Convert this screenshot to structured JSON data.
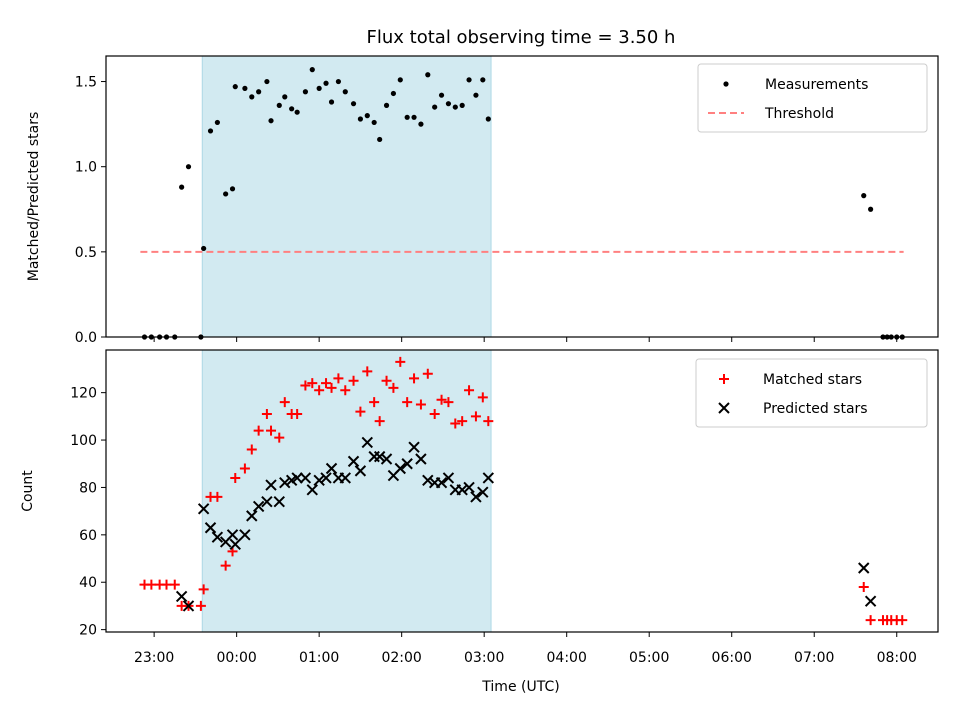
{
  "figure": {
    "title": "Flux total observing time = 3.50 h",
    "xlabel": "Time (UTC)",
    "x_tick_labels": [
      "23:00",
      "00:00",
      "01:00",
      "02:00",
      "03:00",
      "04:00",
      "05:00",
      "06:00",
      "07:00",
      "08:00"
    ],
    "observing_window": {
      "start": "23:35",
      "end": "03:05",
      "color": "#add8e6"
    }
  },
  "chart_data": [
    {
      "type": "scatter",
      "ylabel": "Matched/Predicted stars",
      "xlim": [
        "22:25",
        "08:30"
      ],
      "ylim": [
        0,
        1.65
      ],
      "y_ticks": [
        0.0,
        0.5,
        1.0,
        1.5
      ],
      "y_tick_labels": [
        "0.0",
        "0.5",
        "1.0",
        "1.5"
      ],
      "legend_position": "top-right",
      "series": [
        {
          "name": "Measurements",
          "color": "#000000",
          "marker": "dot",
          "points": [
            [
              "22:53",
              0
            ],
            [
              "22:58",
              0
            ],
            [
              "23:04",
              0
            ],
            [
              "23:09",
              0
            ],
            [
              "23:15",
              0
            ],
            [
              "23:20",
              0.88
            ],
            [
              "23:25",
              1.0
            ],
            [
              "23:34",
              0
            ],
            [
              "23:36",
              0.52
            ],
            [
              "23:41",
              1.21
            ],
            [
              "23:46",
              1.26
            ],
            [
              "23:52",
              0.84
            ],
            [
              "23:57",
              0.87
            ],
            [
              "23:59",
              1.47
            ],
            [
              "00:06",
              1.46
            ],
            [
              "00:11",
              1.41
            ],
            [
              "00:16",
              1.44
            ],
            [
              "00:22",
              1.5
            ],
            [
              "00:25",
              1.27
            ],
            [
              "00:31",
              1.36
            ],
            [
              "00:35",
              1.41
            ],
            [
              "00:40",
              1.34
            ],
            [
              "00:44",
              1.32
            ],
            [
              "00:50",
              1.44
            ],
            [
              "00:55",
              1.57
            ],
            [
              "01:00",
              1.46
            ],
            [
              "01:05",
              1.49
            ],
            [
              "01:09",
              1.38
            ],
            [
              "01:14",
              1.5
            ],
            [
              "01:19",
              1.44
            ],
            [
              "01:25",
              1.37
            ],
            [
              "01:30",
              1.28
            ],
            [
              "01:35",
              1.3
            ],
            [
              "01:40",
              1.26
            ],
            [
              "01:44",
              1.16
            ],
            [
              "01:49",
              1.36
            ],
            [
              "01:54",
              1.43
            ],
            [
              "01:59",
              1.51
            ],
            [
              "02:04",
              1.29
            ],
            [
              "02:09",
              1.29
            ],
            [
              "02:14",
              1.25
            ],
            [
              "02:19",
              1.54
            ],
            [
              "02:24",
              1.35
            ],
            [
              "02:29",
              1.42
            ],
            [
              "02:34",
              1.37
            ],
            [
              "02:39",
              1.35
            ],
            [
              "02:44",
              1.36
            ],
            [
              "02:49",
              1.51
            ],
            [
              "02:54",
              1.42
            ],
            [
              "02:59",
              1.51
            ],
            [
              "03:03",
              1.28
            ],
            [
              "07:36",
              0.83
            ],
            [
              "07:41",
              0.75
            ],
            [
              "07:50",
              0
            ],
            [
              "07:53",
              0
            ],
            [
              "07:56",
              0
            ],
            [
              "08:00",
              0
            ],
            [
              "08:04",
              0
            ]
          ]
        },
        {
          "name": "Threshold",
          "color": "#ff8080",
          "line_style": "dashed",
          "x": [
            "22:50",
            "08:05"
          ],
          "values": [
            0.5,
            0.5
          ]
        }
      ]
    },
    {
      "type": "scatter",
      "ylabel": "Count",
      "xlim": [
        "22:25",
        "08:30"
      ],
      "ylim": [
        19,
        138
      ],
      "y_ticks": [
        20,
        40,
        60,
        80,
        100,
        120
      ],
      "y_tick_labels": [
        "20",
        "40",
        "60",
        "80",
        "100",
        "120"
      ],
      "legend_position": "top-right",
      "series": [
        {
          "name": "Matched stars",
          "color": "#ff0000",
          "marker": "plus",
          "points": [
            [
              "22:53",
              39
            ],
            [
              "22:58",
              39
            ],
            [
              "23:04",
              39
            ],
            [
              "23:09",
              39
            ],
            [
              "23:15",
              39
            ],
            [
              "23:20",
              30
            ],
            [
              "23:25",
              30
            ],
            [
              "23:34",
              30
            ],
            [
              "23:36",
              37
            ],
            [
              "23:41",
              76
            ],
            [
              "23:46",
              76
            ],
            [
              "23:52",
              47
            ],
            [
              "23:57",
              53
            ],
            [
              "23:59",
              84
            ],
            [
              "00:06",
              88
            ],
            [
              "00:11",
              96
            ],
            [
              "00:16",
              104
            ],
            [
              "00:22",
              111
            ],
            [
              "00:25",
              104
            ],
            [
              "00:31",
              101
            ],
            [
              "00:35",
              116
            ],
            [
              "00:40",
              111
            ],
            [
              "00:44",
              111
            ],
            [
              "00:50",
              123
            ],
            [
              "00:55",
              124
            ],
            [
              "01:00",
              121
            ],
            [
              "01:05",
              124
            ],
            [
              "01:09",
              122
            ],
            [
              "01:14",
              126
            ],
            [
              "01:19",
              121
            ],
            [
              "01:25",
              125
            ],
            [
              "01:30",
              112
            ],
            [
              "01:35",
              129
            ],
            [
              "01:40",
              116
            ],
            [
              "01:44",
              108
            ],
            [
              "01:49",
              125
            ],
            [
              "01:54",
              122
            ],
            [
              "01:59",
              133
            ],
            [
              "02:04",
              116
            ],
            [
              "02:09",
              126
            ],
            [
              "02:14",
              115
            ],
            [
              "02:19",
              128
            ],
            [
              "02:24",
              111
            ],
            [
              "02:29",
              117
            ],
            [
              "02:34",
              116
            ],
            [
              "02:39",
              107
            ],
            [
              "02:44",
              108
            ],
            [
              "02:49",
              121
            ],
            [
              "02:54",
              110
            ],
            [
              "02:59",
              118
            ],
            [
              "03:03",
              108
            ],
            [
              "07:36",
              38
            ],
            [
              "07:41",
              24
            ],
            [
              "07:50",
              24
            ],
            [
              "07:53",
              24
            ],
            [
              "07:56",
              24
            ],
            [
              "08:00",
              24
            ],
            [
              "08:04",
              24
            ]
          ]
        },
        {
          "name": "Predicted stars",
          "color": "#000000",
          "marker": "x",
          "points": [
            [
              "23:20",
              34
            ],
            [
              "23:25",
              30
            ],
            [
              "23:36",
              71
            ],
            [
              "23:41",
              63
            ],
            [
              "23:46",
              59
            ],
            [
              "23:52",
              57
            ],
            [
              "23:57",
              60
            ],
            [
              "23:59",
              56
            ],
            [
              "00:06",
              60
            ],
            [
              "00:11",
              68
            ],
            [
              "00:16",
              72
            ],
            [
              "00:22",
              74
            ],
            [
              "00:25",
              81
            ],
            [
              "00:31",
              74
            ],
            [
              "00:35",
              82
            ],
            [
              "00:40",
              83
            ],
            [
              "00:44",
              84
            ],
            [
              "00:50",
              84
            ],
            [
              "00:55",
              79
            ],
            [
              "01:00",
              83
            ],
            [
              "01:05",
              84
            ],
            [
              "01:09",
              88
            ],
            [
              "01:14",
              84
            ],
            [
              "01:19",
              84
            ],
            [
              "01:25",
              91
            ],
            [
              "01:30",
              87
            ],
            [
              "01:35",
              99
            ],
            [
              "01:40",
              93
            ],
            [
              "01:44",
              93
            ],
            [
              "01:49",
              92
            ],
            [
              "01:54",
              85
            ],
            [
              "01:59",
              88
            ],
            [
              "02:04",
              90
            ],
            [
              "02:09",
              97
            ],
            [
              "02:14",
              92
            ],
            [
              "02:19",
              83
            ],
            [
              "02:24",
              82
            ],
            [
              "02:29",
              82
            ],
            [
              "02:34",
              84
            ],
            [
              "02:39",
              79
            ],
            [
              "02:44",
              79
            ],
            [
              "02:49",
              80
            ],
            [
              "02:54",
              76
            ],
            [
              "02:59",
              78
            ],
            [
              "03:03",
              84
            ],
            [
              "07:36",
              46
            ],
            [
              "07:41",
              32
            ]
          ]
        }
      ]
    }
  ]
}
